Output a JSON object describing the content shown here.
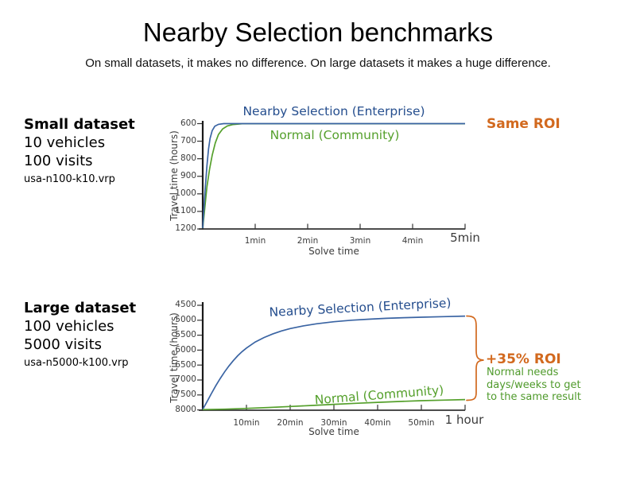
{
  "title": "Nearby Selection benchmarks",
  "subtitle": "On small datasets, it makes no difference. On large datasets it makes a huge difference.",
  "colors": {
    "enterprise_line": "#3a64a3",
    "enterprise_label": "#254e8e",
    "community_line": "#55a02c",
    "community_label": "#55a02c",
    "roi_orange": "#d2691e",
    "axis_text": "#3c3c3c"
  },
  "small_panel": {
    "heading": "Small dataset",
    "vehicles": "10 vehicles",
    "visits": "100 visits",
    "file": "usa-n100-k10.vrp",
    "roi_annotation": "Same ROI"
  },
  "large_panel": {
    "heading": "Large dataset",
    "vehicles": "100 vehicles",
    "visits": "5000 visits",
    "file": "usa-n5000-k100.vrp",
    "roi_annotation": "+35% ROI",
    "roi_note_line1": "Normal needs",
    "roi_note_line2": "days/weeks to get",
    "roi_note_line3": "to the same result"
  },
  "chart_data": [
    {
      "type": "line",
      "name": "small-dataset-benchmark",
      "xlabel": "Solve time",
      "ylabel": "Travel time (hours)",
      "x_unit": "minutes",
      "xlim": [
        0,
        5
      ],
      "ylim": [
        600,
        1200
      ],
      "y_axis": "inverted (600 at top, 1200 at bottom); lower travel time is better",
      "legend_position": "labels drawn inside plot",
      "grid": false,
      "xtick_values": [
        1,
        2,
        3,
        4,
        5
      ],
      "xtick_labels": [
        "1min",
        "2min",
        "3min",
        "4min",
        "5min"
      ],
      "ytick_labels": [
        "600",
        "700",
        "800",
        "900",
        "1000",
        "1100",
        "1200"
      ],
      "series": [
        {
          "name": "Nearby Selection (Enterprise)",
          "color": "#3a64a3",
          "points": [
            [
              0,
              1195
            ],
            [
              0.02,
              1100
            ],
            [
              0.05,
              960
            ],
            [
              0.08,
              840
            ],
            [
              0.11,
              745
            ],
            [
              0.14,
              685
            ],
            [
              0.18,
              640
            ],
            [
              0.23,
              615
            ],
            [
              0.3,
              604
            ],
            [
              0.4,
              600
            ],
            [
              0.6,
              600
            ],
            [
              5,
              600
            ]
          ]
        },
        {
          "name": "Normal (Community)",
          "color": "#55a02c",
          "points": [
            [
              0,
              1195
            ],
            [
              0.04,
              1080
            ],
            [
              0.08,
              960
            ],
            [
              0.13,
              860
            ],
            [
              0.18,
              780
            ],
            [
              0.24,
              710
            ],
            [
              0.3,
              662
            ],
            [
              0.38,
              630
            ],
            [
              0.47,
              613
            ],
            [
              0.58,
              605
            ],
            [
              0.75,
              601
            ],
            [
              5,
              601
            ]
          ]
        }
      ]
    },
    {
      "type": "line",
      "name": "large-dataset-benchmark",
      "xlabel": "Solve time",
      "ylabel": "Travel time (hours)",
      "x_unit": "minutes",
      "xlim": [
        0,
        60
      ],
      "ylim": [
        4500,
        8000
      ],
      "y_axis": "inverted (4500 at top, 8000 at bottom); lower travel time is better",
      "legend_position": "labels drawn inside plot",
      "grid": false,
      "xtick_values": [
        10,
        20,
        30,
        40,
        50,
        60
      ],
      "xtick_labels": [
        "10min",
        "20min",
        "30min",
        "40min",
        "50min",
        "1 hour"
      ],
      "ytick_labels": [
        "4500",
        "5000",
        "5500",
        "6000",
        "6500",
        "7000",
        "7500",
        "8000"
      ],
      "series": [
        {
          "name": "Nearby Selection (Enterprise)",
          "color": "#3a64a3",
          "points": [
            [
              0,
              7985
            ],
            [
              1,
              7720
            ],
            [
              2,
              7450
            ],
            [
              3,
              7190
            ],
            [
              4,
              6950
            ],
            [
              5,
              6730
            ],
            [
              6,
              6530
            ],
            [
              7,
              6350
            ],
            [
              8,
              6190
            ],
            [
              9,
              6050
            ],
            [
              10,
              5930
            ],
            [
              12,
              5730
            ],
            [
              14,
              5580
            ],
            [
              16,
              5460
            ],
            [
              18,
              5360
            ],
            [
              20,
              5280
            ],
            [
              23,
              5190
            ],
            [
              26,
              5120
            ],
            [
              30,
              5050
            ],
            [
              34,
              5000
            ],
            [
              38,
              4965
            ],
            [
              42,
              4935
            ],
            [
              46,
              4915
            ],
            [
              50,
              4898
            ],
            [
              55,
              4880
            ],
            [
              60,
              4862
            ]
          ]
        },
        {
          "name": "Normal (Community)",
          "color": "#55a02c",
          "points": [
            [
              0,
              7990
            ],
            [
              5,
              7975
            ],
            [
              10,
              7950
            ],
            [
              15,
              7920
            ],
            [
              20,
              7885
            ],
            [
              25,
              7850
            ],
            [
              30,
              7815
            ],
            [
              35,
              7780
            ],
            [
              40,
              7748
            ],
            [
              45,
              7718
            ],
            [
              50,
              7692
            ],
            [
              55,
              7672
            ],
            [
              60,
              7655
            ]
          ]
        }
      ]
    }
  ]
}
